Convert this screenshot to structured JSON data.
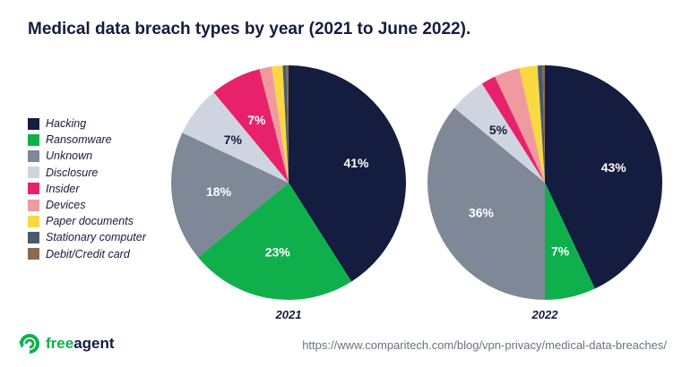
{
  "title": "Medical data breach types by year (2021 to June 2022).",
  "url": "https://www.comparitech.com/blog/vpn-privacy/medical-data-breaches/",
  "logo": {
    "free": "free",
    "agent": "agent"
  },
  "chart_data": [
    {
      "type": "pie",
      "title": "2021",
      "categories": [
        "Hacking",
        "Ransomware",
        "Unknown",
        "Disclosure",
        "Insider",
        "Devices",
        "Paper documents",
        "Stationary computer",
        "Debit/Credit card"
      ],
      "values": [
        41,
        23,
        18,
        7,
        7,
        1.7,
        1.5,
        0.5,
        0.3
      ],
      "data_labels": [
        "41%",
        "23%",
        "18%",
        "7%",
        "7%",
        "",
        "",
        "",
        ""
      ]
    },
    {
      "type": "pie",
      "title": "2022",
      "categories": [
        "Hacking",
        "Ransomware",
        "Unknown",
        "Disclosure",
        "Insider",
        "Devices",
        "Paper documents",
        "Stationary computer",
        "Debit/Credit card"
      ],
      "values": [
        43,
        7,
        36,
        5,
        2,
        3.5,
        2.5,
        0.7,
        0.3
      ],
      "data_labels": [
        "43%",
        "7%",
        "36%",
        "5%",
        "",
        "",
        "",
        "",
        ""
      ]
    }
  ],
  "legend": [
    "Hacking",
    "Ransomware",
    "Unknown",
    "Disclosure",
    "Insider",
    "Devices",
    "Paper documents",
    "Stationary computer",
    "Debit/Credit card"
  ],
  "colors": [
    "#141c40",
    "#0fb04b",
    "#7e8896",
    "#cfd5e0",
    "#e8226a",
    "#f09aa0",
    "#f9d843",
    "#4a5a6a",
    "#8b6a50"
  ],
  "label_colors": [
    "#ffffff",
    "#ffffff",
    "#ffffff",
    "#141c40",
    "#ffffff",
    "#ffffff",
    "#141c40",
    "#ffffff",
    "#ffffff"
  ]
}
